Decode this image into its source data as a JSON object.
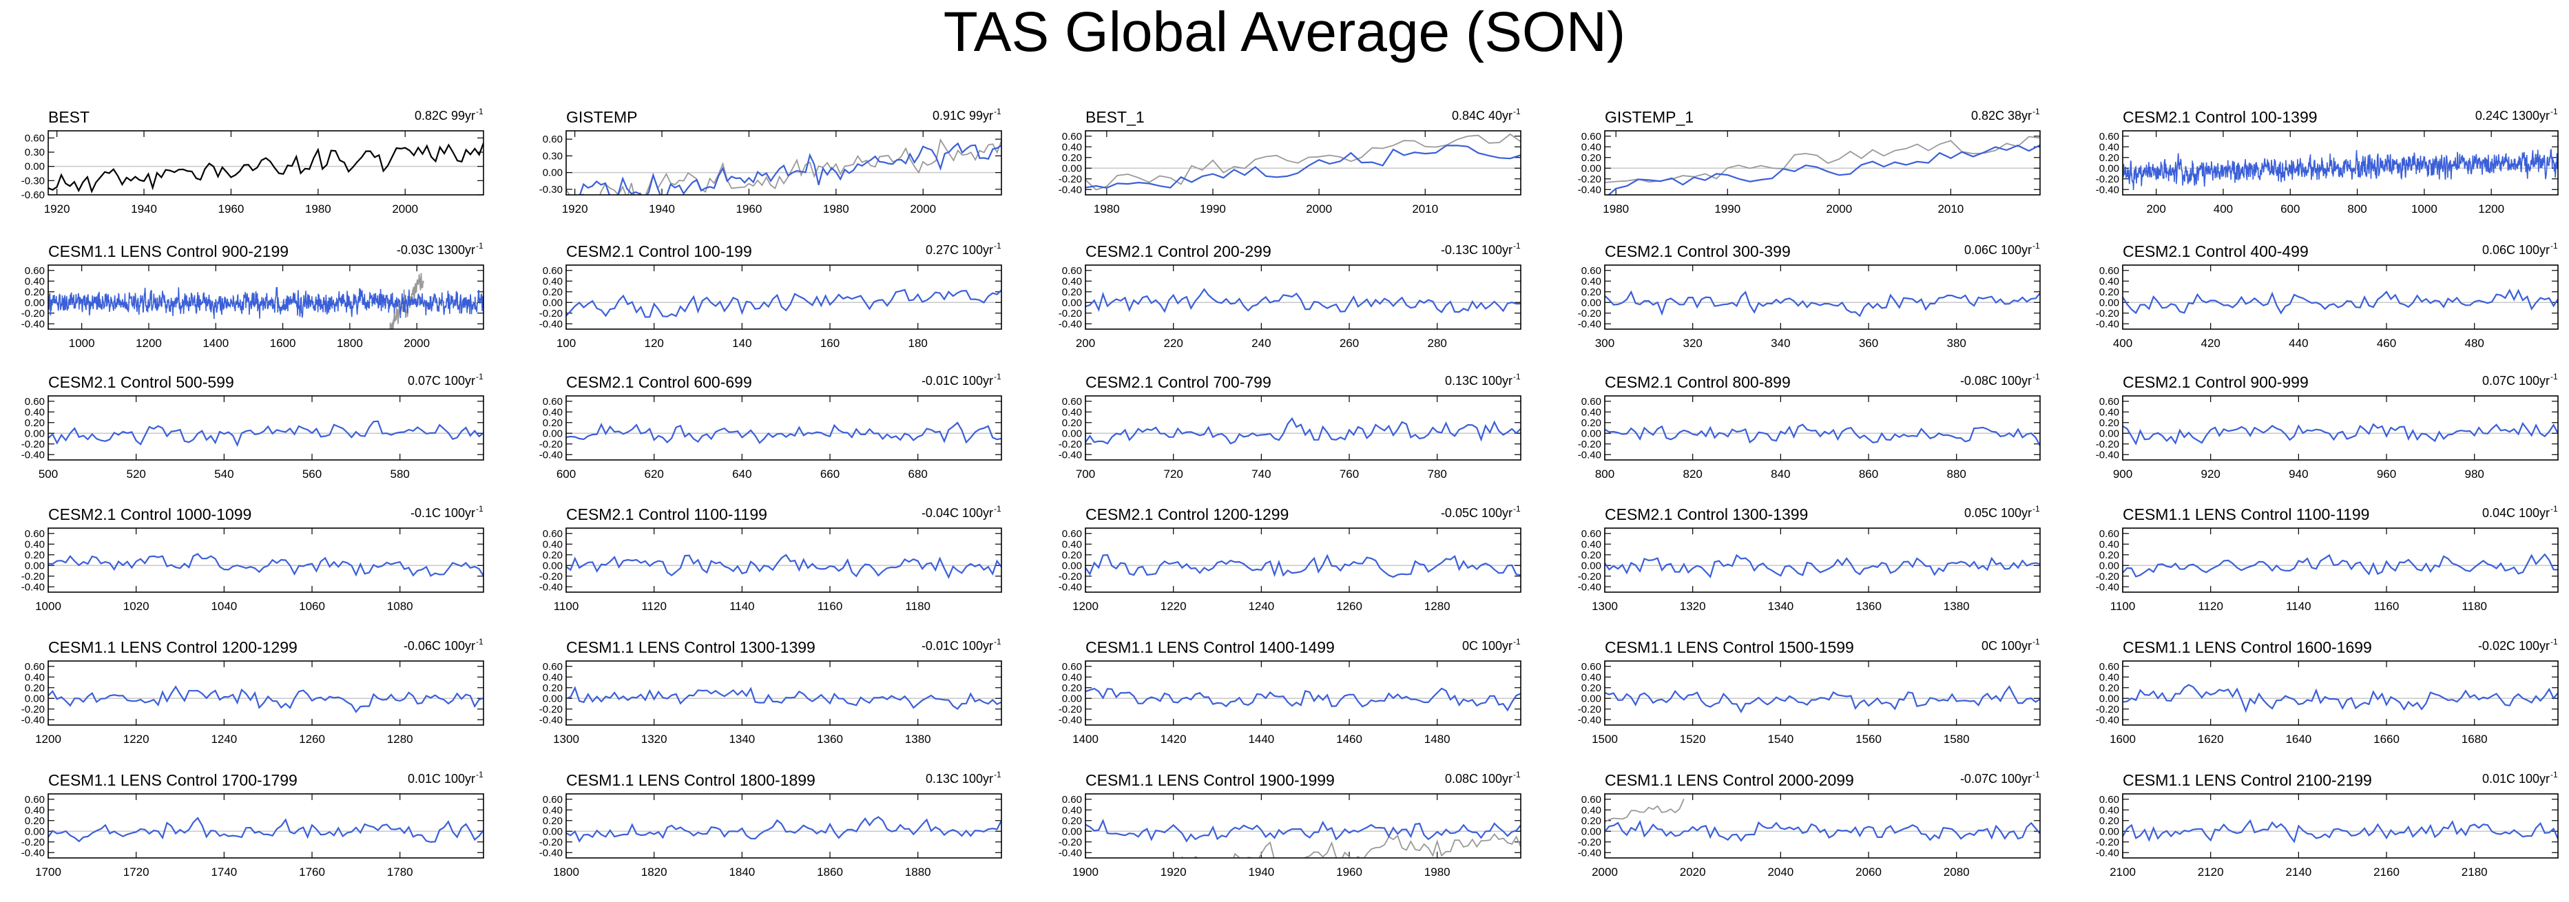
{
  "title": "TAS Global Average (SON)",
  "colors": {
    "model": "#3a5fd9",
    "obs": "#999999",
    "first": "#000000",
    "zero": "#c8c8c8"
  },
  "chart_data": [
    {
      "type": "line",
      "label": "BEST",
      "trend_text": "0.82C 99yr",
      "xlim": [
        1918,
        2018
      ],
      "ylim": [
        -0.6,
        0.75
      ],
      "yticks": [
        -0.6,
        -0.3,
        0,
        0.3,
        0.6
      ],
      "xticks": [
        1920,
        1940,
        1960,
        1980,
        2000
      ],
      "trend": 0.82,
      "seed": 11,
      "amp": 0.15,
      "series_color": "first",
      "dashed_zero": true
    },
    {
      "type": "line",
      "label": "GISTEMP",
      "trend_text": "0.91C 99yr",
      "xlim": [
        1918,
        2018
      ],
      "ylim": [
        -0.4,
        0.75
      ],
      "yticks": [
        -0.3,
        0,
        0.3,
        0.6
      ],
      "xticks": [
        1920,
        1940,
        1960,
        1980,
        2000
      ],
      "trend": 0.91,
      "seed": 12,
      "amp": 0.15,
      "overlay": {
        "trend": 0.85,
        "seed": 13,
        "amp": 0.15
      }
    },
    {
      "type": "line",
      "label": "BEST_1",
      "trend_text": "0.84C 40yr",
      "xlim": [
        1978,
        2019
      ],
      "ylim": [
        -0.5,
        0.7
      ],
      "yticks": [
        -0.4,
        -0.2,
        0,
        0.2,
        0.4,
        0.6
      ],
      "xticks": [
        1980,
        1990,
        2000,
        2010
      ],
      "trend": 0.84,
      "seed": 14,
      "amp": 0.1,
      "overlay": {
        "trend": 0.84,
        "seed": 15,
        "amp": 0.1,
        "offset": 0.17
      }
    },
    {
      "type": "line",
      "label": "GISTEMP_1",
      "trend_text": "0.82C 38yr",
      "xlim": [
        1979,
        2018
      ],
      "ylim": [
        -0.5,
        0.7
      ],
      "yticks": [
        -0.4,
        -0.2,
        0,
        0.2,
        0.4,
        0.6
      ],
      "xticks": [
        1980,
        1990,
        2000,
        2010
      ],
      "trend": 0.82,
      "seed": 16,
      "amp": 0.1,
      "overlay": {
        "trend": 0.82,
        "seed": 17,
        "amp": 0.1,
        "offset": 0.16
      }
    },
    {
      "type": "line",
      "label": "CESM2.1 Control 100-1399",
      "trend_text": "0.24C 1300yr",
      "xlim": [
        100,
        1399
      ],
      "ylim": [
        -0.5,
        0.7
      ],
      "yticks": [
        -0.4,
        -0.2,
        0,
        0.2,
        0.4,
        0.6
      ],
      "xticks": [
        200,
        400,
        600,
        800,
        1000,
        1200
      ],
      "trend": 0.24,
      "seed": 18,
      "amp": 0.12
    },
    {
      "type": "line",
      "label": "CESM1.1 LENS Control 900-2199",
      "trend_text": "-0.03C 1300yr",
      "xlim": [
        900,
        2199
      ],
      "ylim": [
        -0.5,
        0.7
      ],
      "yticks": [
        -0.4,
        -0.2,
        0,
        0.2,
        0.4,
        0.6
      ],
      "xticks": [
        1000,
        1200,
        1400,
        1600,
        1800,
        2000
      ],
      "trend": -0.03,
      "seed": 19,
      "amp": 0.12,
      "overlay": {
        "trend": 0.9,
        "seed": 20,
        "amp": 0.12,
        "range": [
          1920,
          2020
        ]
      }
    },
    {
      "type": "line",
      "label": "CESM2.1 Control 100-199",
      "trend_text": "0.27C 100yr",
      "xlim": [
        100,
        199
      ],
      "ylim": [
        -0.5,
        0.7
      ],
      "yticks": [
        -0.4,
        -0.2,
        0,
        0.2,
        0.4,
        0.6
      ],
      "xticks": [
        100,
        120,
        140,
        160,
        180
      ],
      "trend": 0.27,
      "seed": 21,
      "amp": 0.1
    },
    {
      "type": "line",
      "label": "CESM2.1 Control 200-299",
      "trend_text": "-0.13C 100yr",
      "xlim": [
        200,
        299
      ],
      "ylim": [
        -0.5,
        0.7
      ],
      "yticks": [
        -0.4,
        -0.2,
        0,
        0.2,
        0.4,
        0.6
      ],
      "xticks": [
        200,
        220,
        240,
        260,
        280
      ],
      "trend": -0.13,
      "seed": 22,
      "amp": 0.1
    },
    {
      "type": "line",
      "label": "CESM2.1 Control 300-399",
      "trend_text": "0.06C 100yr",
      "xlim": [
        300,
        399
      ],
      "ylim": [
        -0.5,
        0.7
      ],
      "yticks": [
        -0.4,
        -0.2,
        0,
        0.2,
        0.4,
        0.6
      ],
      "xticks": [
        300,
        320,
        340,
        360,
        380
      ],
      "trend": 0.06,
      "seed": 23,
      "amp": 0.1
    },
    {
      "type": "line",
      "label": "CESM2.1 Control 400-499",
      "trend_text": "0.06C 100yr",
      "xlim": [
        400,
        499
      ],
      "ylim": [
        -0.5,
        0.7
      ],
      "yticks": [
        -0.4,
        -0.2,
        0,
        0.2,
        0.4,
        0.6
      ],
      "xticks": [
        400,
        420,
        440,
        460,
        480
      ],
      "trend": 0.06,
      "seed": 24,
      "amp": 0.1
    },
    {
      "type": "line",
      "label": "CESM2.1 Control 500-599",
      "trend_text": "0.07C 100yr",
      "xlim": [
        500,
        599
      ],
      "ylim": [
        -0.5,
        0.7
      ],
      "yticks": [
        -0.4,
        -0.2,
        0,
        0.2,
        0.4,
        0.6
      ],
      "xticks": [
        500,
        520,
        540,
        560,
        580
      ],
      "trend": 0.07,
      "seed": 25,
      "amp": 0.1
    },
    {
      "type": "line",
      "label": "CESM2.1 Control 600-699",
      "trend_text": "-0.01C 100yr",
      "xlim": [
        600,
        699
      ],
      "ylim": [
        -0.5,
        0.7
      ],
      "yticks": [
        -0.4,
        -0.2,
        0,
        0.2,
        0.4,
        0.6
      ],
      "xticks": [
        600,
        620,
        640,
        660,
        680
      ],
      "trend": -0.01,
      "seed": 26,
      "amp": 0.1
    },
    {
      "type": "line",
      "label": "CESM2.1 Control 700-799",
      "trend_text": "0.13C 100yr",
      "xlim": [
        700,
        799
      ],
      "ylim": [
        -0.5,
        0.7
      ],
      "yticks": [
        -0.4,
        -0.2,
        0,
        0.2,
        0.4,
        0.6
      ],
      "xticks": [
        700,
        720,
        740,
        760,
        780
      ],
      "trend": 0.13,
      "seed": 27,
      "amp": 0.1
    },
    {
      "type": "line",
      "label": "CESM2.1 Control 800-899",
      "trend_text": "-0.08C 100yr",
      "xlim": [
        800,
        899
      ],
      "ylim": [
        -0.5,
        0.7
      ],
      "yticks": [
        -0.4,
        -0.2,
        0,
        0.2,
        0.4,
        0.6
      ],
      "xticks": [
        800,
        820,
        840,
        860,
        880
      ],
      "trend": -0.08,
      "seed": 28,
      "amp": 0.1
    },
    {
      "type": "line",
      "label": "CESM2.1 Control 900-999",
      "trend_text": "0.07C 100yr",
      "xlim": [
        900,
        999
      ],
      "ylim": [
        -0.5,
        0.7
      ],
      "yticks": [
        -0.4,
        -0.2,
        0,
        0.2,
        0.4,
        0.6
      ],
      "xticks": [
        900,
        920,
        940,
        960,
        980
      ],
      "trend": 0.07,
      "seed": 29,
      "amp": 0.1
    },
    {
      "type": "line",
      "label": "CESM2.1 Control 1000-1099",
      "trend_text": "-0.1C 100yr",
      "xlim": [
        1000,
        1099
      ],
      "ylim": [
        -0.5,
        0.7
      ],
      "yticks": [
        -0.4,
        -0.2,
        0,
        0.2,
        0.4,
        0.6
      ],
      "xticks": [
        1000,
        1020,
        1040,
        1060,
        1080
      ],
      "trend": -0.1,
      "seed": 30,
      "amp": 0.1
    },
    {
      "type": "line",
      "label": "CESM2.1 Control 1100-1199",
      "trend_text": "-0.04C 100yr",
      "xlim": [
        1100,
        1199
      ],
      "ylim": [
        -0.5,
        0.7
      ],
      "yticks": [
        -0.4,
        -0.2,
        0,
        0.2,
        0.4,
        0.6
      ],
      "xticks": [
        1100,
        1120,
        1140,
        1160,
        1180
      ],
      "trend": -0.04,
      "seed": 31,
      "amp": 0.1
    },
    {
      "type": "line",
      "label": "CESM2.1 Control 1200-1299",
      "trend_text": "-0.05C 100yr",
      "xlim": [
        1200,
        1299
      ],
      "ylim": [
        -0.5,
        0.7
      ],
      "yticks": [
        -0.4,
        -0.2,
        0,
        0.2,
        0.4,
        0.6
      ],
      "xticks": [
        1200,
        1220,
        1240,
        1260,
        1280
      ],
      "trend": -0.05,
      "seed": 32,
      "amp": 0.1
    },
    {
      "type": "line",
      "label": "CESM2.1 Control 1300-1399",
      "trend_text": "0.05C 100yr",
      "xlim": [
        1300,
        1399
      ],
      "ylim": [
        -0.5,
        0.7
      ],
      "yticks": [
        -0.4,
        -0.2,
        0,
        0.2,
        0.4,
        0.6
      ],
      "xticks": [
        1300,
        1320,
        1340,
        1360,
        1380
      ],
      "trend": 0.05,
      "seed": 33,
      "amp": 0.1
    },
    {
      "type": "line",
      "label": "CESM1.1 LENS Control 1100-1199",
      "trend_text": "0.04C 100yr",
      "xlim": [
        1100,
        1199
      ],
      "ylim": [
        -0.5,
        0.7
      ],
      "yticks": [
        -0.4,
        -0.2,
        0,
        0.2,
        0.4,
        0.6
      ],
      "xticks": [
        1100,
        1120,
        1140,
        1160,
        1180
      ],
      "trend": 0.04,
      "seed": 34,
      "amp": 0.1
    },
    {
      "type": "line",
      "label": "CESM1.1 LENS Control 1200-1299",
      "trend_text": "-0.06C 100yr",
      "xlim": [
        1200,
        1299
      ],
      "ylim": [
        -0.5,
        0.7
      ],
      "yticks": [
        -0.4,
        -0.2,
        0,
        0.2,
        0.4,
        0.6
      ],
      "xticks": [
        1200,
        1220,
        1240,
        1260,
        1280
      ],
      "trend": -0.06,
      "seed": 35,
      "amp": 0.1
    },
    {
      "type": "line",
      "label": "CESM1.1 LENS Control 1300-1399",
      "trend_text": "-0.01C 100yr",
      "xlim": [
        1300,
        1399
      ],
      "ylim": [
        -0.5,
        0.7
      ],
      "yticks": [
        -0.4,
        -0.2,
        0,
        0.2,
        0.4,
        0.6
      ],
      "xticks": [
        1300,
        1320,
        1340,
        1360,
        1380
      ],
      "trend": -0.01,
      "seed": 36,
      "amp": 0.1
    },
    {
      "type": "line",
      "label": "CESM1.1 LENS Control 1400-1499",
      "trend_text": "0C 100yr",
      "xlim": [
        1400,
        1499
      ],
      "ylim": [
        -0.5,
        0.7
      ],
      "yticks": [
        -0.4,
        -0.2,
        0,
        0.2,
        0.4,
        0.6
      ],
      "xticks": [
        1400,
        1420,
        1440,
        1460,
        1480
      ],
      "trend": 0,
      "seed": 37,
      "amp": 0.1
    },
    {
      "type": "line",
      "label": "CESM1.1 LENS Control 1500-1599",
      "trend_text": "0C 100yr",
      "xlim": [
        1500,
        1599
      ],
      "ylim": [
        -0.5,
        0.7
      ],
      "yticks": [
        -0.4,
        -0.2,
        0,
        0.2,
        0.4,
        0.6
      ],
      "xticks": [
        1500,
        1520,
        1540,
        1560,
        1580
      ],
      "trend": 0,
      "seed": 38,
      "amp": 0.1
    },
    {
      "type": "line",
      "label": "CESM1.1 LENS Control 1600-1699",
      "trend_text": "-0.02C 100yr",
      "xlim": [
        1600,
        1699
      ],
      "ylim": [
        -0.5,
        0.7
      ],
      "yticks": [
        -0.4,
        -0.2,
        0,
        0.2,
        0.4,
        0.6
      ],
      "xticks": [
        1600,
        1620,
        1640,
        1660,
        1680
      ],
      "trend": -0.02,
      "seed": 39,
      "amp": 0.1
    },
    {
      "type": "line",
      "label": "CESM1.1 LENS Control 1700-1799",
      "trend_text": "0.01C 100yr",
      "xlim": [
        1700,
        1799
      ],
      "ylim": [
        -0.5,
        0.7
      ],
      "yticks": [
        -0.4,
        -0.2,
        0,
        0.2,
        0.4,
        0.6
      ],
      "xticks": [
        1700,
        1720,
        1740,
        1760,
        1780
      ],
      "trend": 0.01,
      "seed": 40,
      "amp": 0.1
    },
    {
      "type": "line",
      "label": "CESM1.1 LENS Control 1800-1899",
      "trend_text": "0.13C 100yr",
      "xlim": [
        1800,
        1899
      ],
      "ylim": [
        -0.5,
        0.7
      ],
      "yticks": [
        -0.4,
        -0.2,
        0,
        0.2,
        0.4,
        0.6
      ],
      "xticks": [
        1800,
        1820,
        1840,
        1860,
        1880
      ],
      "trend": 0.13,
      "seed": 41,
      "amp": 0.1
    },
    {
      "type": "line",
      "label": "CESM1.1 LENS Control 1900-1999",
      "trend_text": "0.08C 100yr",
      "xlim": [
        1900,
        1999
      ],
      "ylim": [
        -0.5,
        0.7
      ],
      "yticks": [
        -0.4,
        -0.2,
        0,
        0.2,
        0.4,
        0.6
      ],
      "xticks": [
        1900,
        1920,
        1940,
        1960,
        1980
      ],
      "trend": 0.08,
      "seed": 42,
      "amp": 0.1,
      "overlay": {
        "trend": 0.7,
        "seed": 43,
        "amp": 0.12,
        "range": [
          1920,
          2018
        ],
        "offset": -0.3
      }
    },
    {
      "type": "line",
      "label": "CESM1.1 LENS Control 2000-2099",
      "trend_text": "-0.07C 100yr",
      "xlim": [
        2000,
        2099
      ],
      "ylim": [
        -0.5,
        0.7
      ],
      "yticks": [
        -0.4,
        -0.2,
        0,
        0.2,
        0.4,
        0.6
      ],
      "xticks": [
        2000,
        2020,
        2040,
        2060,
        2080
      ],
      "trend": -0.07,
      "seed": 44,
      "amp": 0.1,
      "overlay": {
        "trend": 0.25,
        "seed": 45,
        "amp": 0.08,
        "range": [
          2000,
          2018
        ],
        "offset": 0.35
      }
    },
    {
      "type": "line",
      "label": "CESM1.1 LENS Control 2100-2199",
      "trend_text": "0.01C 100yr",
      "xlim": [
        2100,
        2199
      ],
      "ylim": [
        -0.5,
        0.7
      ],
      "yticks": [
        -0.4,
        -0.2,
        0,
        0.2,
        0.4,
        0.6
      ],
      "xticks": [
        2100,
        2120,
        2140,
        2160,
        2180
      ],
      "trend": 0.01,
      "seed": 46,
      "amp": 0.1
    }
  ]
}
